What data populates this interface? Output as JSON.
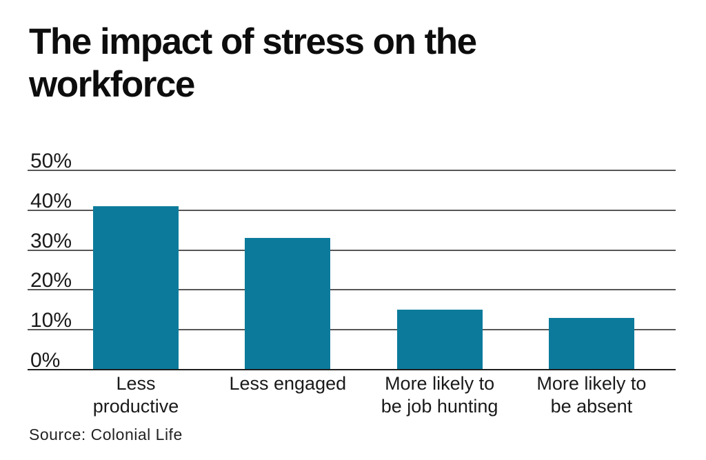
{
  "title": {
    "text": "The impact of stress on the workforce",
    "lines": [
      "The impact of stress on the",
      "workforce"
    ]
  },
  "source": "Source: Colonial Life",
  "colors": {
    "bar": "#0c7b9b",
    "gridline": "#565656",
    "baseline": "#1e1e1e",
    "text": "#1a1a1a",
    "background": "#ffffff"
  },
  "chart_data": {
    "type": "bar",
    "title": "The impact of stress on the workforce",
    "categories": [
      "Less productive",
      "Less engaged",
      "More likely to be job hunting",
      "More likely to be absent"
    ],
    "category_label_lines": [
      [
        "Less",
        "productive"
      ],
      [
        "Less engaged"
      ],
      [
        "More likely to",
        "be job hunting"
      ],
      [
        "More likely to",
        "be absent"
      ]
    ],
    "values": [
      41,
      33,
      15,
      13
    ],
    "unit": "%",
    "xlabel": "",
    "ylabel": "",
    "ylim": [
      0,
      50
    ],
    "yticks": [
      0,
      10,
      20,
      30,
      40,
      50
    ],
    "ytick_labels": [
      "0%",
      "10%",
      "20%",
      "30%",
      "40%",
      "50%"
    ],
    "grid": true,
    "legend": "none",
    "bar_color": "#0c7b9b",
    "source": "Source: Colonial Life"
  }
}
